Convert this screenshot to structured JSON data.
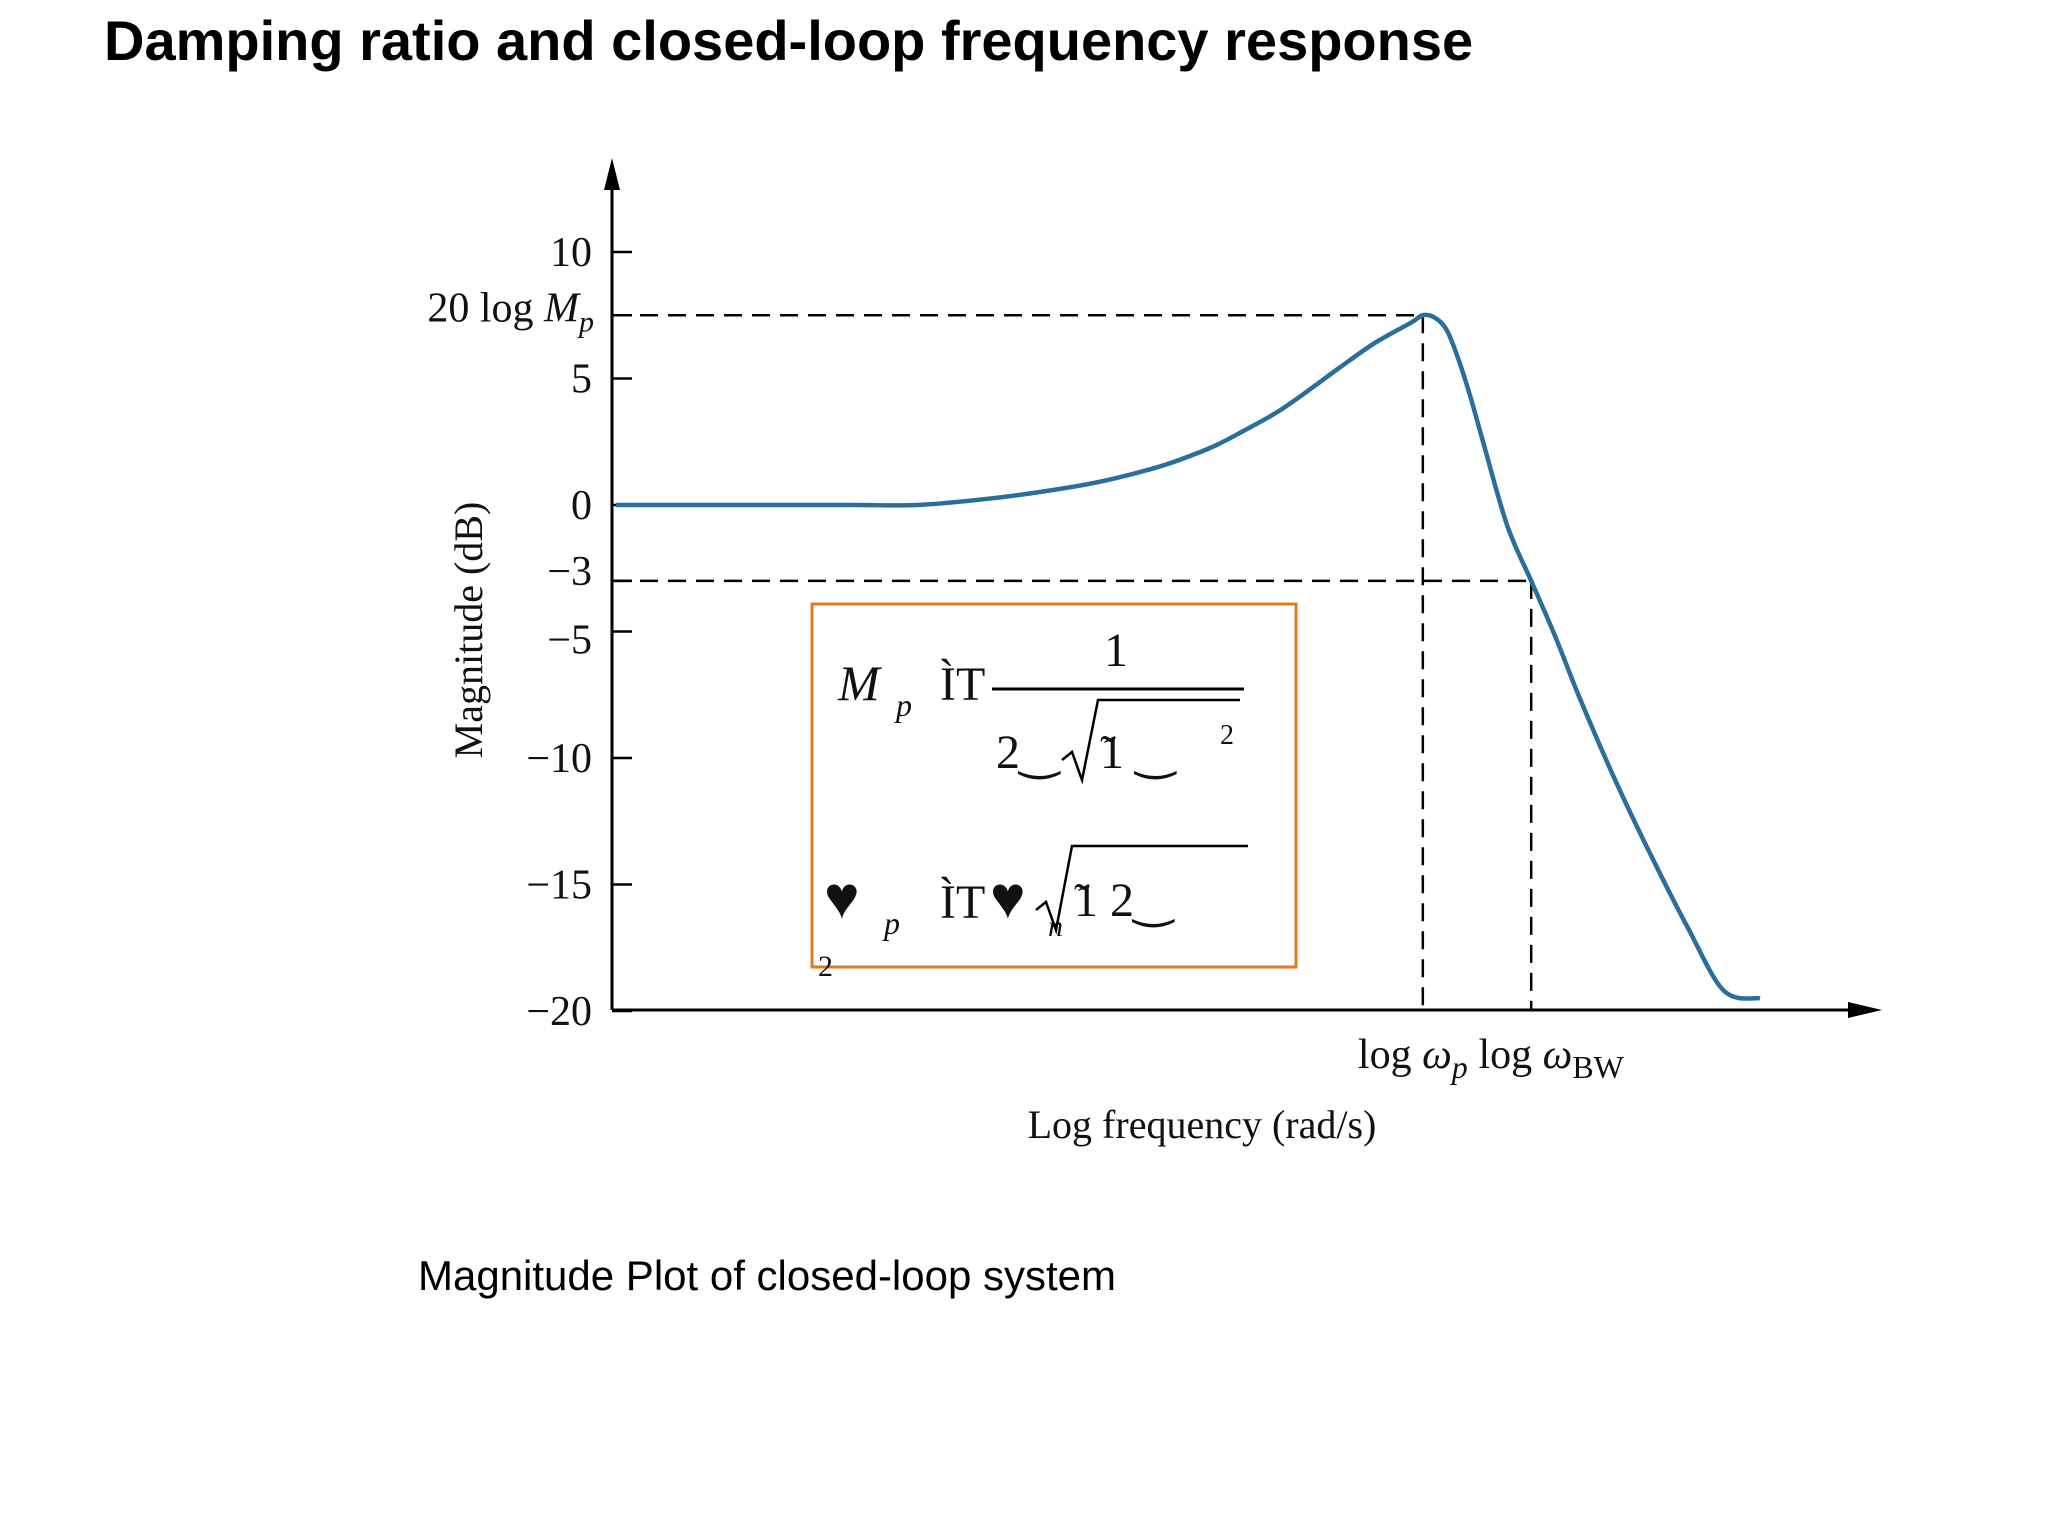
{
  "title": "Damping ratio and closed-loop frequency response",
  "caption": "Magnitude Plot of closed-loop system",
  "chart_data": {
    "type": "line",
    "title": "",
    "xlabel": "Log frequency (rad/s)",
    "ylabel": "Magnitude (dB)",
    "ylim": [
      -20,
      12
    ],
    "x_scale": "log",
    "grid": false,
    "legend": "none",
    "y_ticks": [
      "10",
      "5",
      "0",
      "−3",
      "−5",
      "−10",
      "−15",
      "−20"
    ],
    "y_tick_values": [
      10,
      5,
      0,
      -3,
      -5,
      -10,
      -15,
      -20
    ],
    "x_tick_labels": {
      "wp": "log ωp",
      "wbw": "log ωBW"
    },
    "annotations": {
      "mp_label": "20 log Mp",
      "mp_db": 7.5,
      "minus3_db": -3
    },
    "series": [
      {
        "color": "#2a6f9b",
        "x": [
          0.0,
          0.5,
          1.0,
          1.5,
          2.0,
          2.5,
          3.0,
          3.5,
          4.0,
          4.5,
          4.8,
          5.0,
          5.2,
          5.5,
          5.8,
          6.0,
          6.3,
          6.6,
          6.7,
          6.8,
          6.9,
          7.0,
          7.1,
          7.2,
          7.4,
          7.6,
          7.8,
          8.0,
          8.3,
          8.6,
          8.9,
          9.2,
          9.5
        ],
        "y": [
          0.0,
          0.0,
          0.0,
          0.0,
          0.0,
          0.0,
          0.2,
          0.5,
          0.9,
          1.5,
          2.0,
          2.4,
          2.9,
          3.7,
          4.7,
          5.4,
          6.4,
          7.2,
          7.5,
          7.4,
          6.9,
          5.7,
          4.2,
          2.5,
          -0.8,
          -3.0,
          -5.2,
          -7.6,
          -10.9,
          -13.9,
          -16.7,
          -19.2,
          -19.5
        ]
      }
    ],
    "formula": {
      "line1": {
        "lhs": "M",
        "lhs_sub": "p",
        "sym": "ÌT",
        "num": "1",
        "den_a": "2‿",
        "den_b": "̃1 ‿",
        "den_sup": "2"
      },
      "line2": {
        "lhs": "♥",
        "lhs_sub": "p",
        "sym": "ÌT",
        "rhs": "♥",
        "rhs_sub": "n",
        "rad": "̃1 2‿",
        "extra": "2"
      }
    }
  }
}
